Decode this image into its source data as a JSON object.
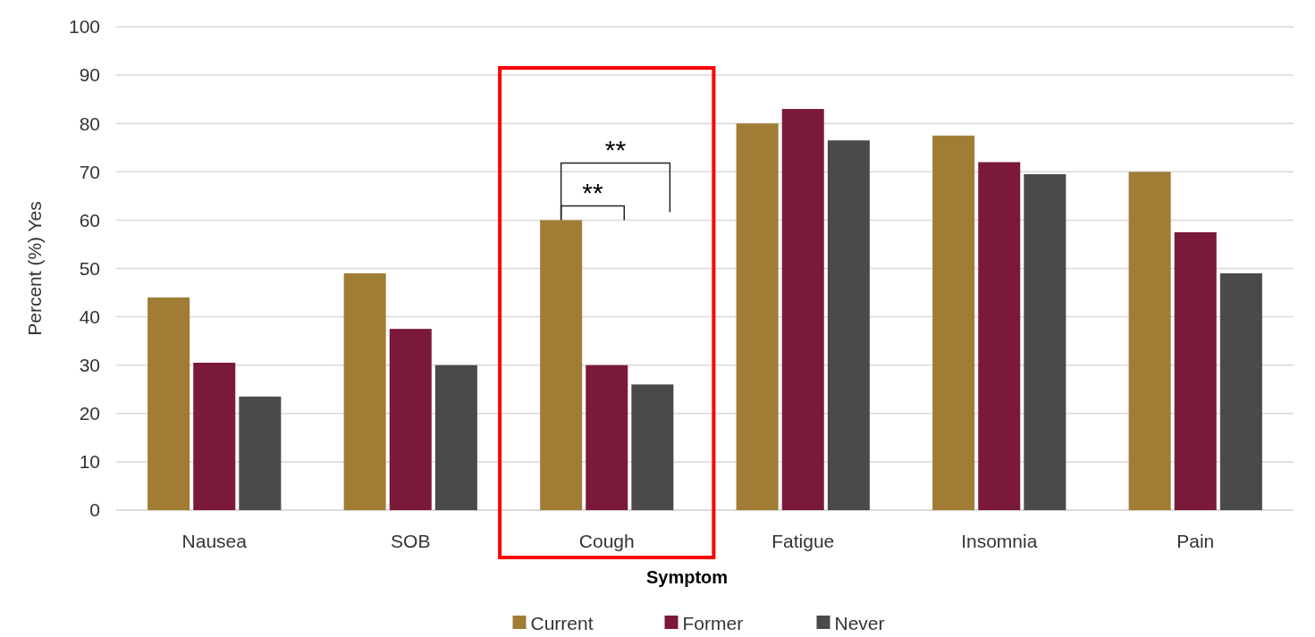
{
  "chart_data": {
    "type": "bar",
    "xlabel": "Symptom",
    "ylabel": "Percent (%) Yes",
    "categories": [
      "Nausea",
      "SOB",
      "Cough",
      "Fatigue",
      "Insomnia",
      "Pain"
    ],
    "series": [
      {
        "name": "Current",
        "color": "#a07c35",
        "values": [
          44,
          49,
          60,
          80,
          77.5,
          70
        ]
      },
      {
        "name": "Former",
        "color": "#7b1a38",
        "values": [
          30.5,
          37.5,
          30,
          83,
          72,
          57.5
        ]
      },
      {
        "name": "Never",
        "color": "#4a4a4a",
        "values": [
          23.5,
          30,
          26,
          76.5,
          69.5,
          49
        ]
      }
    ],
    "ylim": [
      0,
      100
    ],
    "yticks": [
      0,
      10,
      20,
      30,
      40,
      50,
      60,
      70,
      80,
      90,
      100
    ],
    "grid": "y",
    "legend": "bottom",
    "annotations": [
      "**",
      "**"
    ]
  }
}
